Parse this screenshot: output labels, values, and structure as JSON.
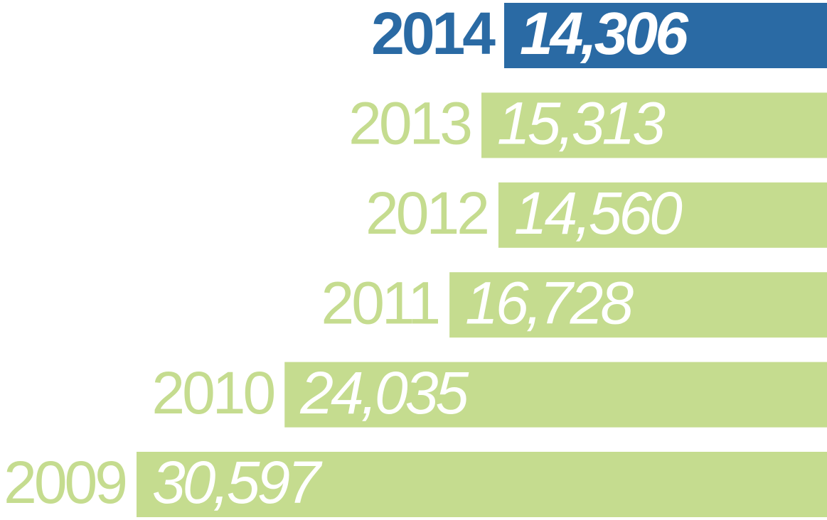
{
  "chart_data": {
    "type": "bar",
    "orientation": "horizontal",
    "categories": [
      "2014",
      "2013",
      "2012",
      "2011",
      "2010",
      "2009"
    ],
    "values": [
      14306,
      15313,
      14560,
      16728,
      24035,
      30597
    ],
    "value_labels": [
      "14,306",
      "15,313",
      "14,560",
      "16,728",
      "24,035",
      "30,597"
    ],
    "colors": [
      "#2a6aa4",
      "#c5dc8f",
      "#c5dc8f",
      "#c5dc8f",
      "#c5dc8f",
      "#c5dc8f"
    ],
    "bold": [
      true,
      false,
      false,
      false,
      false,
      false
    ]
  }
}
